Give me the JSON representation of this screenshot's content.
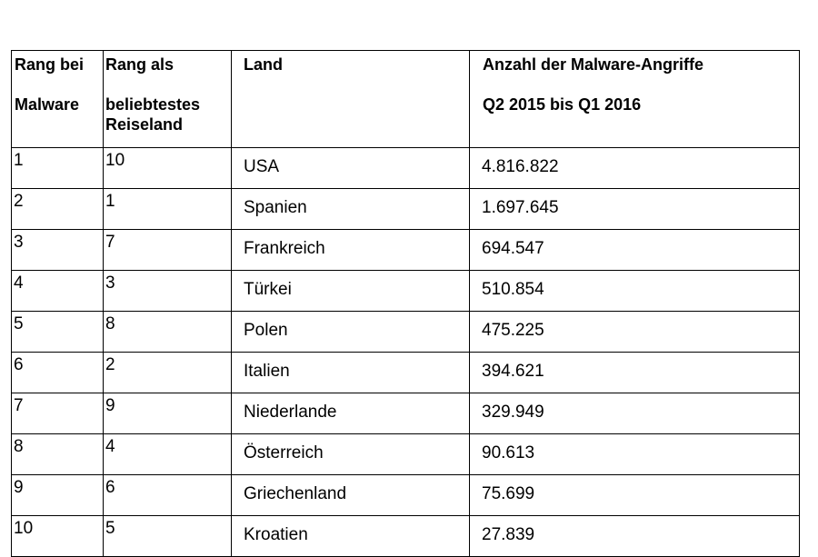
{
  "table": {
    "headers": {
      "rank_malware": [
        "Rang bei",
        "Malware"
      ],
      "rank_travel": [
        "Rang als",
        "beliebtestes",
        "Reiseland"
      ],
      "country": "Land",
      "attacks": [
        "Anzahl der Malware-Angriffe",
        "Q2 2015 bis Q1 2016"
      ]
    },
    "rows": [
      {
        "rank_malware": "1",
        "rank_travel": "10",
        "country": "USA",
        "attacks": "4.816.822"
      },
      {
        "rank_malware": "2",
        "rank_travel": "1",
        "country": "Spanien",
        "attacks": "1.697.645"
      },
      {
        "rank_malware": "3",
        "rank_travel": "7",
        "country": "Frankreich",
        "attacks": "694.547"
      },
      {
        "rank_malware": "4",
        "rank_travel": "3",
        "country": "Türkei",
        "attacks": "510.854"
      },
      {
        "rank_malware": "5",
        "rank_travel": "8",
        "country": "Polen",
        "attacks": "475.225"
      },
      {
        "rank_malware": "6",
        "rank_travel": "2",
        "country": "Italien",
        "attacks": "394.621"
      },
      {
        "rank_malware": "7",
        "rank_travel": "9",
        "country": "Niederlande",
        "attacks": "329.949"
      },
      {
        "rank_malware": "8",
        "rank_travel": "4",
        "country": "Österreich",
        "attacks": "90.613"
      },
      {
        "rank_malware": "9",
        "rank_travel": "6",
        "country": "Griechenland",
        "attacks": "75.699"
      },
      {
        "rank_malware": "10",
        "rank_travel": "5",
        "country": "Kroatien",
        "attacks": "27.839"
      }
    ]
  }
}
